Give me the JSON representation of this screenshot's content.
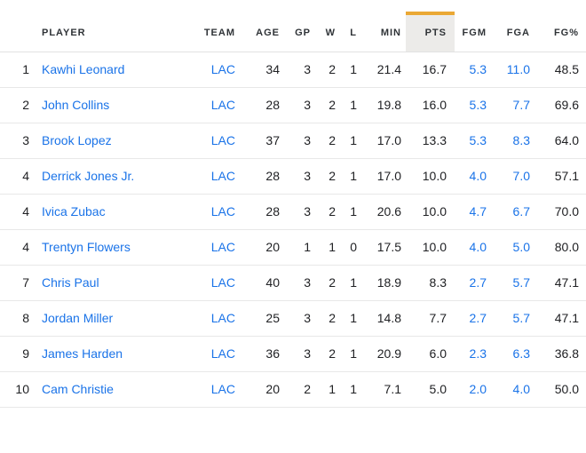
{
  "colors": {
    "sorted_accent_gold": "#eaa834",
    "sorted_header_bg": "#ecebe9",
    "link_blue": "#1a73e8",
    "header_text": "#2f3337",
    "body_text": "#202124",
    "row_border": "#e8e8e8"
  },
  "table": {
    "columns": [
      {
        "key": "rank",
        "label": "",
        "sorted": false,
        "blue": false
      },
      {
        "key": "player",
        "label": "PLAYER",
        "sorted": false,
        "blue": true
      },
      {
        "key": "team",
        "label": "TEAM",
        "sorted": false,
        "blue": true
      },
      {
        "key": "age",
        "label": "AGE",
        "sorted": false,
        "blue": false
      },
      {
        "key": "gp",
        "label": "GP",
        "sorted": false,
        "blue": false
      },
      {
        "key": "w",
        "label": "W",
        "sorted": false,
        "blue": false
      },
      {
        "key": "l",
        "label": "L",
        "sorted": false,
        "blue": false
      },
      {
        "key": "min",
        "label": "MIN",
        "sorted": false,
        "blue": false
      },
      {
        "key": "pts",
        "label": "PTS",
        "sorted": true,
        "blue": false
      },
      {
        "key": "fgm",
        "label": "FGM",
        "sorted": false,
        "blue": true
      },
      {
        "key": "fga",
        "label": "FGA",
        "sorted": false,
        "blue": true
      },
      {
        "key": "fgpct",
        "label": "FG%",
        "sorted": false,
        "blue": false
      }
    ],
    "rows": [
      {
        "rank": "1",
        "player": "Kawhi Leonard",
        "team": "LAC",
        "age": "34",
        "gp": "3",
        "w": "2",
        "l": "1",
        "min": "21.4",
        "pts": "16.7",
        "fgm": "5.3",
        "fga": "11.0",
        "fgpct": "48.5"
      },
      {
        "rank": "2",
        "player": "John Collins",
        "team": "LAC",
        "age": "28",
        "gp": "3",
        "w": "2",
        "l": "1",
        "min": "19.8",
        "pts": "16.0",
        "fgm": "5.3",
        "fga": "7.7",
        "fgpct": "69.6"
      },
      {
        "rank": "3",
        "player": "Brook Lopez",
        "team": "LAC",
        "age": "37",
        "gp": "3",
        "w": "2",
        "l": "1",
        "min": "17.0",
        "pts": "13.3",
        "fgm": "5.3",
        "fga": "8.3",
        "fgpct": "64.0"
      },
      {
        "rank": "4",
        "player": "Derrick Jones Jr.",
        "team": "LAC",
        "age": "28",
        "gp": "3",
        "w": "2",
        "l": "1",
        "min": "17.0",
        "pts": "10.0",
        "fgm": "4.0",
        "fga": "7.0",
        "fgpct": "57.1"
      },
      {
        "rank": "4",
        "player": "Ivica Zubac",
        "team": "LAC",
        "age": "28",
        "gp": "3",
        "w": "2",
        "l": "1",
        "min": "20.6",
        "pts": "10.0",
        "fgm": "4.7",
        "fga": "6.7",
        "fgpct": "70.0"
      },
      {
        "rank": "4",
        "player": "Trentyn Flowers",
        "team": "LAC",
        "age": "20",
        "gp": "1",
        "w": "1",
        "l": "0",
        "min": "17.5",
        "pts": "10.0",
        "fgm": "4.0",
        "fga": "5.0",
        "fgpct": "80.0"
      },
      {
        "rank": "7",
        "player": "Chris Paul",
        "team": "LAC",
        "age": "40",
        "gp": "3",
        "w": "2",
        "l": "1",
        "min": "18.9",
        "pts": "8.3",
        "fgm": "2.7",
        "fga": "5.7",
        "fgpct": "47.1"
      },
      {
        "rank": "8",
        "player": "Jordan Miller",
        "team": "LAC",
        "age": "25",
        "gp": "3",
        "w": "2",
        "l": "1",
        "min": "14.8",
        "pts": "7.7",
        "fgm": "2.7",
        "fga": "5.7",
        "fgpct": "47.1"
      },
      {
        "rank": "9",
        "player": "James Harden",
        "team": "LAC",
        "age": "36",
        "gp": "3",
        "w": "2",
        "l": "1",
        "min": "20.9",
        "pts": "6.0",
        "fgm": "2.3",
        "fga": "6.3",
        "fgpct": "36.8"
      },
      {
        "rank": "10",
        "player": "Cam Christie",
        "team": "LAC",
        "age": "20",
        "gp": "2",
        "w": "1",
        "l": "1",
        "min": "7.1",
        "pts": "5.0",
        "fgm": "2.0",
        "fga": "4.0",
        "fgpct": "50.0"
      }
    ]
  }
}
